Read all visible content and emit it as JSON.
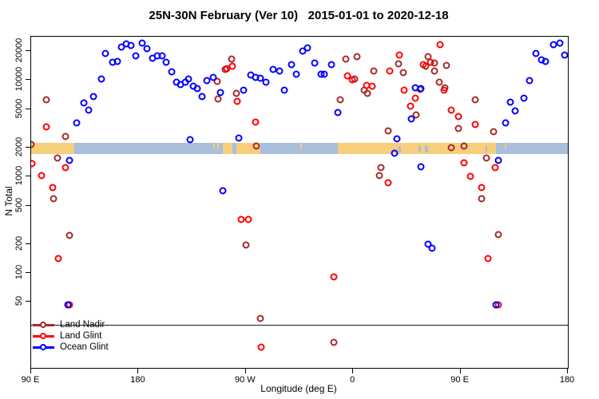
{
  "chart_data": {
    "type": "scatter",
    "title": "25N-30N February (Ver 10)   2015-01-01 to 2020-12-18",
    "xlabel": "Longitude (deg E)",
    "ylabel": "N Total",
    "y_scale": "log",
    "x_axis_deg_range": [
      90,
      540
    ],
    "ylim": [
      10,
      28000
    ],
    "x_ticks": [
      {
        "deg": 90,
        "label": "90 E"
      },
      {
        "deg": 180,
        "label": "180"
      },
      {
        "deg": 270,
        "label": "90 W"
      },
      {
        "deg": 360,
        "label": "0"
      },
      {
        "deg": 450,
        "label": "90 E"
      },
      {
        "deg": 540,
        "label": "180"
      }
    ],
    "y_ticks": [
      {
        "n": 50,
        "label": "50"
      },
      {
        "n": 100,
        "label": "100"
      },
      {
        "n": 200,
        "label": "200"
      },
      {
        "n": 500,
        "label": "500"
      },
      {
        "n": 1000,
        "label": "1000"
      },
      {
        "n": 2000,
        "label": "2000"
      },
      {
        "n": 5000,
        "label": "5000"
      },
      {
        "n": 10000,
        "label": "10000"
      },
      {
        "n": 20000,
        "label": "20000"
      }
    ],
    "legend_rule_n": 29,
    "series": [
      {
        "name": "Land Nadir",
        "color": "#A52A2A",
        "points": [
          [
            103,
            6300
          ],
          [
            119,
            2600
          ],
          [
            90,
            2150
          ],
          [
            112,
            1550
          ],
          [
            109,
            590
          ],
          [
            122,
            245
          ],
          [
            258,
            16500
          ],
          [
            253,
            12900
          ],
          [
            246,
            9700
          ],
          [
            247,
            6400
          ],
          [
            262,
            7300
          ],
          [
            354,
            16400
          ],
          [
            363,
            17400
          ],
          [
            377,
            12500
          ],
          [
            361,
            10300
          ],
          [
            369,
            7900
          ],
          [
            372,
            7300
          ],
          [
            349,
            6300
          ],
          [
            389,
            3000
          ],
          [
            279,
            2070
          ],
          [
            270,
            195
          ],
          [
            282,
            34
          ],
          [
            344,
            19
          ],
          [
            383,
            1240
          ],
          [
            382,
            1020
          ],
          [
            398,
            14800
          ],
          [
            402,
            12000
          ],
          [
            423,
            17400
          ],
          [
            428,
            15000
          ],
          [
            421,
            13900
          ],
          [
            438,
            14200
          ],
          [
            428,
            12500
          ],
          [
            432,
            9500
          ],
          [
            437,
            8400
          ],
          [
            416,
            8000
          ],
          [
            413,
            4350
          ],
          [
            448,
            3150
          ],
          [
            462,
            6300
          ],
          [
            478,
            2900
          ],
          [
            442,
            2000
          ],
          [
            453,
            2070
          ],
          [
            472,
            1550
          ],
          [
            468,
            590
          ],
          [
            482,
            250
          ]
        ]
      },
      {
        "name": "Land Glint",
        "color": "#FF0000",
        "points": [
          [
            103,
            3300
          ],
          [
            91,
            1360
          ],
          [
            119,
            1240
          ],
          [
            99,
            1020
          ],
          [
            108,
            770
          ],
          [
            113,
            140
          ],
          [
            122,
            47
          ],
          [
            266,
            360
          ],
          [
            272,
            355
          ],
          [
            344,
            90
          ],
          [
            283,
            17
          ],
          [
            254,
            13100
          ],
          [
            259,
            13900
          ],
          [
            263,
            6000
          ],
          [
            278,
            3700
          ],
          [
            355,
            11100
          ],
          [
            359,
            10100
          ],
          [
            371,
            8800
          ],
          [
            376,
            8600
          ],
          [
            391,
            12400
          ],
          [
            433,
            23100
          ],
          [
            399,
            18300
          ],
          [
            419,
            14600
          ],
          [
            425,
            15200
          ],
          [
            403,
            7900
          ],
          [
            412,
            6500
          ],
          [
            408,
            5400
          ],
          [
            436,
            7800
          ],
          [
            442,
            4900
          ],
          [
            448,
            4200
          ],
          [
            462,
            3450
          ],
          [
            389,
            860
          ],
          [
            453,
            1380
          ],
          [
            479,
            1240
          ],
          [
            458,
            1000
          ],
          [
            468,
            770
          ],
          [
            473,
            140
          ],
          [
            482,
            47
          ]
        ]
      },
      {
        "name": "Ocean Glint",
        "color": "#0000FF",
        "points": [
          [
            152,
            18900
          ],
          [
            158,
            15300
          ],
          [
            162,
            15600
          ],
          [
            166,
            22100
          ],
          [
            170,
            23800
          ],
          [
            174,
            23000
          ],
          [
            178,
            17900
          ],
          [
            183,
            24200
          ],
          [
            187,
            21300
          ],
          [
            192,
            16700
          ],
          [
            196,
            17900
          ],
          [
            200,
            17900
          ],
          [
            203,
            15300
          ],
          [
            208,
            12200
          ],
          [
            212,
            9500
          ],
          [
            215,
            9000
          ],
          [
            219,
            9500
          ],
          [
            222,
            10300
          ],
          [
            226,
            8600
          ],
          [
            229,
            8100
          ],
          [
            233,
            6800
          ],
          [
            237,
            9900
          ],
          [
            149,
            10300
          ],
          [
            142,
            6700
          ],
          [
            138,
            4900
          ],
          [
            134,
            5800
          ],
          [
            128,
            3600
          ],
          [
            122,
            1470
          ],
          [
            121,
            47
          ],
          [
            243,
            10700
          ],
          [
            249,
            7400
          ],
          [
            268,
            7900
          ],
          [
            274,
            11300
          ],
          [
            278,
            10700
          ],
          [
            282,
            10500
          ],
          [
            287,
            9500
          ],
          [
            293,
            12900
          ],
          [
            298,
            12500
          ],
          [
            302,
            7900
          ],
          [
            308,
            14600
          ],
          [
            312,
            11500
          ],
          [
            318,
            20000
          ],
          [
            322,
            21600
          ],
          [
            328,
            15000
          ],
          [
            333,
            11500
          ],
          [
            336,
            11500
          ],
          [
            342,
            14600
          ],
          [
            347,
            4650
          ],
          [
            264,
            2500
          ],
          [
            223,
            2400
          ],
          [
            251,
            715
          ],
          [
            412,
            8400
          ],
          [
            417,
            8200
          ],
          [
            409,
            3950
          ],
          [
            513,
            18900
          ],
          [
            521,
            15600
          ],
          [
            518,
            16300
          ],
          [
            528,
            23100
          ],
          [
            533,
            24000
          ],
          [
            537,
            18200
          ],
          [
            508,
            9900
          ],
          [
            503,
            6550
          ],
          [
            492,
            5900
          ],
          [
            496,
            4800
          ],
          [
            488,
            3600
          ],
          [
            397,
            2470
          ],
          [
            395,
            1740
          ],
          [
            417,
            1260
          ],
          [
            482,
            1470
          ],
          [
            423,
            200
          ],
          [
            426,
            180
          ],
          [
            480,
            47
          ]
        ]
      }
    ],
    "map_band": {
      "description": "Land/ocean coastline strip for the 25N-30N latitude band drawn across the plot",
      "n_top": 2250,
      "n_bottom": 1720,
      "land_color": "#F7CE7C",
      "ocean_color": "#A9BFDB",
      "land_deg": [
        [
          90,
          126
        ],
        [
          251,
          259
        ],
        [
          262,
          282
        ],
        [
          347,
          480
        ]
      ],
      "ocean_deg": [
        [
          126,
          251
        ],
        [
          259,
          262
        ],
        [
          282,
          347
        ],
        [
          480,
          540
        ]
      ],
      "ocean_specks_deg": [
        [
          398,
          400
        ],
        [
          415,
          417
        ],
        [
          420,
          423
        ],
        [
          471,
          472
        ]
      ],
      "land_specks_deg": [
        [
          243,
          244
        ],
        [
          246,
          247
        ],
        [
          316,
          317
        ],
        [
          487,
          488
        ]
      ]
    }
  },
  "legend": {
    "items": [
      {
        "label": "Land Nadir",
        "color": "#A52A2A"
      },
      {
        "label": "Land Glint",
        "color": "#FF0000"
      },
      {
        "label": "Ocean Glint",
        "color": "#0000FF"
      }
    ]
  }
}
